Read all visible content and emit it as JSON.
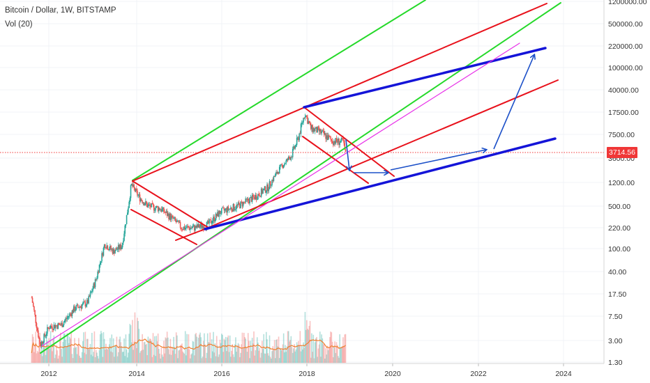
{
  "header": {
    "title": "Bitcoin / Dollar, 1W, BITSTAMP",
    "volume_label": "Vol (20)"
  },
  "last_price": "3714.56",
  "colors": {
    "candle_up": "#26a69a",
    "candle_down": "#ef5350",
    "channel_red": "#e8111b",
    "channel_green": "#25d92a",
    "trend_blue": "#1414d8",
    "arrow_blue": "#1c50c8",
    "diagonal_magenta": "#e830e8",
    "volume_ma": "#f08030"
  },
  "chart_data": {
    "type": "line",
    "xlabel": "",
    "ylabel": "",
    "y_scale": "log",
    "x_ticks": [
      "2012",
      "2014",
      "2016",
      "2018",
      "2020",
      "2022",
      "2024"
    ],
    "y_ticks": [
      "1200000.00",
      "500000.00",
      "220000.00",
      "100000.00",
      "40000.00",
      "17500.00",
      "7500.00",
      "3600.00",
      "1200.00",
      "500.00",
      "220.00",
      "100.00",
      "40.00",
      "17.50",
      "7.50",
      "3.00",
      "1.30"
    ],
    "series": [
      {
        "x": [
          2011.6,
          2011.8,
          2012.0,
          2012.3,
          2012.6,
          2012.9,
          2013.1,
          2013.3,
          2013.5,
          2013.7,
          2013.85,
          2013.92,
          2014.1,
          2014.3,
          2014.6,
          2014.9,
          2015.1,
          2015.4,
          2015.7,
          2016.0,
          2016.4,
          2016.8,
          2017.1,
          2017.4,
          2017.65,
          2017.8,
          2017.96,
          2018.1,
          2018.3,
          2018.6,
          2018.85,
          2018.92
        ],
        "y": [
          15,
          2.5,
          5,
          5.5,
          10,
          12.5,
          30,
          120,
          90,
          110,
          500,
          1100,
          700,
          500,
          450,
          300,
          220,
          220,
          250,
          400,
          500,
          700,
          1000,
          2400,
          4000,
          7000,
          17000,
          10000,
          9000,
          6500,
          6300,
          3700
        ]
      }
    ],
    "volume": {
      "ma_label": "Vol (20)"
    }
  }
}
